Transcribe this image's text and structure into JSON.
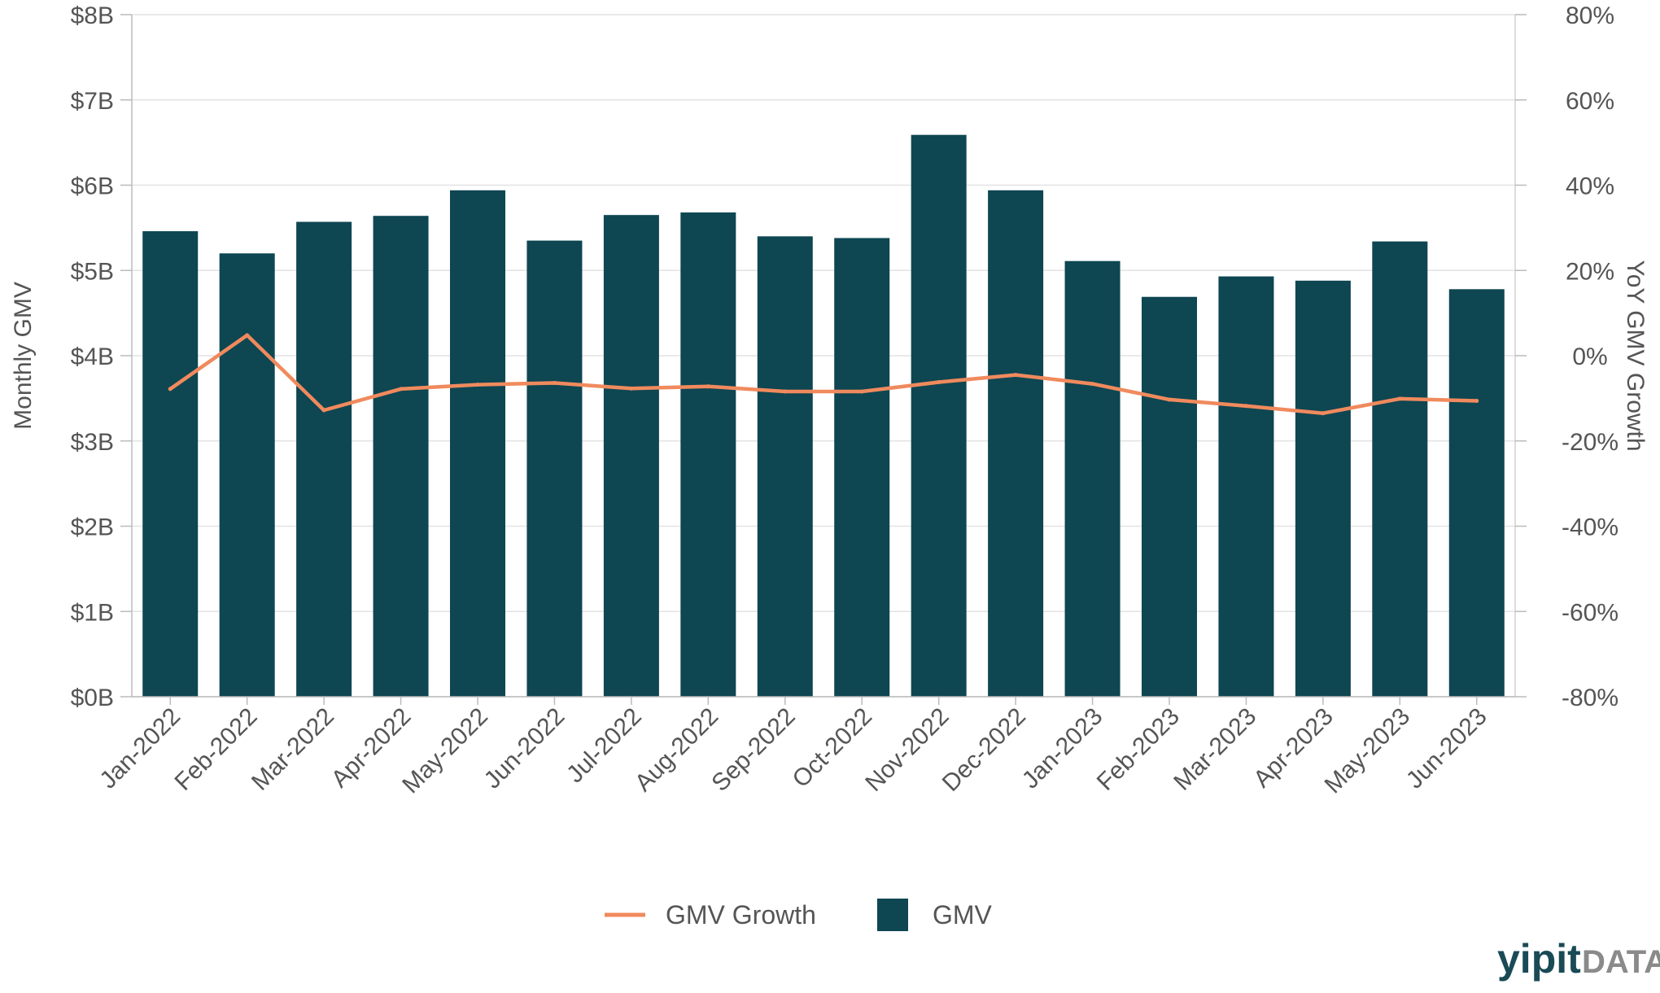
{
  "chart_data": {
    "type": "bar",
    "categories": [
      "Jan-2022",
      "Feb-2022",
      "Mar-2022",
      "Apr-2022",
      "May-2022",
      "Jun-2022",
      "Jul-2022",
      "Aug-2022",
      "Sep-2022",
      "Oct-2022",
      "Nov-2022",
      "Dec-2022",
      "Jan-2023",
      "Feb-2023",
      "Mar-2023",
      "Apr-2023",
      "May-2023",
      "Jun-2023"
    ],
    "series": [
      {
        "name": "GMV",
        "type": "bar",
        "axis": "left",
        "color": "#0e4652",
        "values": [
          5.46,
          5.2,
          5.57,
          5.64,
          5.94,
          5.35,
          5.65,
          5.68,
          5.4,
          5.38,
          6.59,
          5.94,
          5.11,
          4.69,
          4.93,
          4.88,
          5.34,
          4.78
        ]
      },
      {
        "name": "GMV Growth",
        "type": "line",
        "axis": "right",
        "color": "#f08a5d",
        "values": [
          -7.8,
          4.8,
          -12.8,
          -7.8,
          -6.8,
          -6.4,
          -7.7,
          -7.2,
          -8.4,
          -8.4,
          -6.2,
          -4.5,
          -6.6,
          -10.3,
          -11.8,
          -13.5,
          -10.1,
          -10.6
        ]
      }
    ],
    "xlabel": "",
    "ylabel": "Monthly GMV",
    "y2label": "YoY GMV Growth",
    "ylim": [
      0,
      8
    ],
    "y2lim": [
      -80,
      80
    ],
    "yticks": [
      "$0B",
      "$1B",
      "$2B",
      "$3B",
      "$4B",
      "$5B",
      "$6B",
      "$7B",
      "$8B"
    ],
    "y2ticks": [
      "-80%",
      "-60%",
      "-40%",
      "-20%",
      "0%",
      "20%",
      "40%",
      "60%",
      "80%"
    ],
    "grid": true,
    "legend_position": "bottom-center",
    "legend": [
      "GMV Growth",
      "GMV"
    ]
  },
  "logo": {
    "primary": "yipit",
    "secondary": "DATA"
  }
}
